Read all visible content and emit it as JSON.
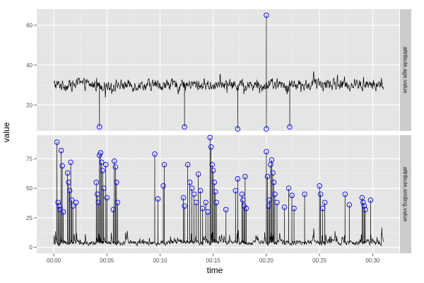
{
  "chart_data": {
    "type": "line",
    "xlabel": "time",
    "ylabel": "value",
    "x_unit": "minutes",
    "x_ticks": [
      0,
      5,
      10,
      15,
      20,
      25,
      30
    ],
    "x_tick_labels": [
      "00:00",
      "00:05",
      "00:10",
      "00:15",
      "00:20",
      "00:25",
      "00:30"
    ],
    "xlim": [
      -1.6,
      32.5
    ],
    "grid": true,
    "legend": "none",
    "colors": {
      "panel_bg": "#e5e5e5",
      "grid_major": "#ffffff",
      "grid_minor": "#f2f2f2",
      "strip_bg": "#cccccc",
      "line": "#000000",
      "outlier_circle": "#0000ff"
    },
    "panels": [
      {
        "strip_label": "attribute.age.value",
        "y_ticks": [
          20,
          40,
          60
        ],
        "ylim": [
          7,
          68
        ],
        "baseline": 30,
        "noise": 4.5,
        "series_x_range": [
          0,
          31
        ],
        "outliers": [
          {
            "x": 4.3,
            "y": 9
          },
          {
            "x": 12.3,
            "y": 9
          },
          {
            "x": 17.3,
            "y": 8
          },
          {
            "x": 20.0,
            "y": 65
          },
          {
            "x": 20.0,
            "y": 8
          },
          {
            "x": 22.2,
            "y": 9
          }
        ]
      },
      {
        "strip_label": "attribute.smiling.value",
        "y_ticks": [
          0,
          25,
          50,
          75
        ],
        "ylim": [
          -5,
          95
        ],
        "baseline": 4,
        "noise": 3.5,
        "series_x_range": [
          0,
          31
        ],
        "outliers": [
          {
            "x": 0.3,
            "y": 89
          },
          {
            "x": 0.4,
            "y": 38
          },
          {
            "x": 0.5,
            "y": 35
          },
          {
            "x": 0.6,
            "y": 32
          },
          {
            "x": 0.7,
            "y": 82
          },
          {
            "x": 0.8,
            "y": 69
          },
          {
            "x": 0.9,
            "y": 30
          },
          {
            "x": 1.3,
            "y": 63
          },
          {
            "x": 1.4,
            "y": 55
          },
          {
            "x": 1.5,
            "y": 48
          },
          {
            "x": 1.6,
            "y": 72
          },
          {
            "x": 1.7,
            "y": 40
          },
          {
            "x": 1.8,
            "y": 35
          },
          {
            "x": 2.1,
            "y": 38
          },
          {
            "x": 4.0,
            "y": 55
          },
          {
            "x": 4.1,
            "y": 45
          },
          {
            "x": 4.2,
            "y": 38
          },
          {
            "x": 4.3,
            "y": 78
          },
          {
            "x": 4.4,
            "y": 80
          },
          {
            "x": 4.5,
            "y": 72
          },
          {
            "x": 4.6,
            "y": 65
          },
          {
            "x": 4.7,
            "y": 50
          },
          {
            "x": 4.9,
            "y": 70
          },
          {
            "x": 5.0,
            "y": 42
          },
          {
            "x": 5.7,
            "y": 73
          },
          {
            "x": 5.8,
            "y": 68
          },
          {
            "x": 5.9,
            "y": 55
          },
          {
            "x": 6.0,
            "y": 38
          },
          {
            "x": 5.6,
            "y": 32
          },
          {
            "x": 9.5,
            "y": 79
          },
          {
            "x": 9.8,
            "y": 41
          },
          {
            "x": 10.4,
            "y": 70
          },
          {
            "x": 10.3,
            "y": 52
          },
          {
            "x": 12.2,
            "y": 42
          },
          {
            "x": 12.3,
            "y": 35
          },
          {
            "x": 12.6,
            "y": 70
          },
          {
            "x": 12.8,
            "y": 55
          },
          {
            "x": 13.0,
            "y": 50
          },
          {
            "x": 13.2,
            "y": 45
          },
          {
            "x": 13.4,
            "y": 38
          },
          {
            "x": 13.6,
            "y": 62
          },
          {
            "x": 13.8,
            "y": 48
          },
          {
            "x": 14.0,
            "y": 33
          },
          {
            "x": 14.3,
            "y": 38
          },
          {
            "x": 14.5,
            "y": 30
          },
          {
            "x": 14.7,
            "y": 93
          },
          {
            "x": 14.8,
            "y": 85
          },
          {
            "x": 14.9,
            "y": 70
          },
          {
            "x": 15.0,
            "y": 65
          },
          {
            "x": 15.1,
            "y": 55
          },
          {
            "x": 15.2,
            "y": 47
          },
          {
            "x": 15.3,
            "y": 38
          },
          {
            "x": 16.2,
            "y": 32
          },
          {
            "x": 17.1,
            "y": 48
          },
          {
            "x": 17.3,
            "y": 58
          },
          {
            "x": 17.7,
            "y": 45
          },
          {
            "x": 17.8,
            "y": 40
          },
          {
            "x": 17.9,
            "y": 35
          },
          {
            "x": 18.0,
            "y": 60
          },
          {
            "x": 18.1,
            "y": 33
          },
          {
            "x": 20.0,
            "y": 81
          },
          {
            "x": 20.1,
            "y": 60
          },
          {
            "x": 20.2,
            "y": 35
          },
          {
            "x": 20.3,
            "y": 40
          },
          {
            "x": 20.4,
            "y": 70
          },
          {
            "x": 20.5,
            "y": 74
          },
          {
            "x": 20.6,
            "y": 63
          },
          {
            "x": 20.7,
            "y": 55
          },
          {
            "x": 20.8,
            "y": 45
          },
          {
            "x": 21.0,
            "y": 38
          },
          {
            "x": 21.7,
            "y": 34
          },
          {
            "x": 22.1,
            "y": 50
          },
          {
            "x": 22.4,
            "y": 44
          },
          {
            "x": 22.6,
            "y": 33
          },
          {
            "x": 23.6,
            "y": 45
          },
          {
            "x": 25.0,
            "y": 52
          },
          {
            "x": 25.1,
            "y": 45
          },
          {
            "x": 25.3,
            "y": 33
          },
          {
            "x": 25.5,
            "y": 38
          },
          {
            "x": 27.4,
            "y": 45
          },
          {
            "x": 27.8,
            "y": 36
          },
          {
            "x": 29.0,
            "y": 42
          },
          {
            "x": 29.1,
            "y": 38
          },
          {
            "x": 29.2,
            "y": 35
          },
          {
            "x": 29.3,
            "y": 32
          },
          {
            "x": 29.8,
            "y": 40
          }
        ]
      }
    ]
  }
}
